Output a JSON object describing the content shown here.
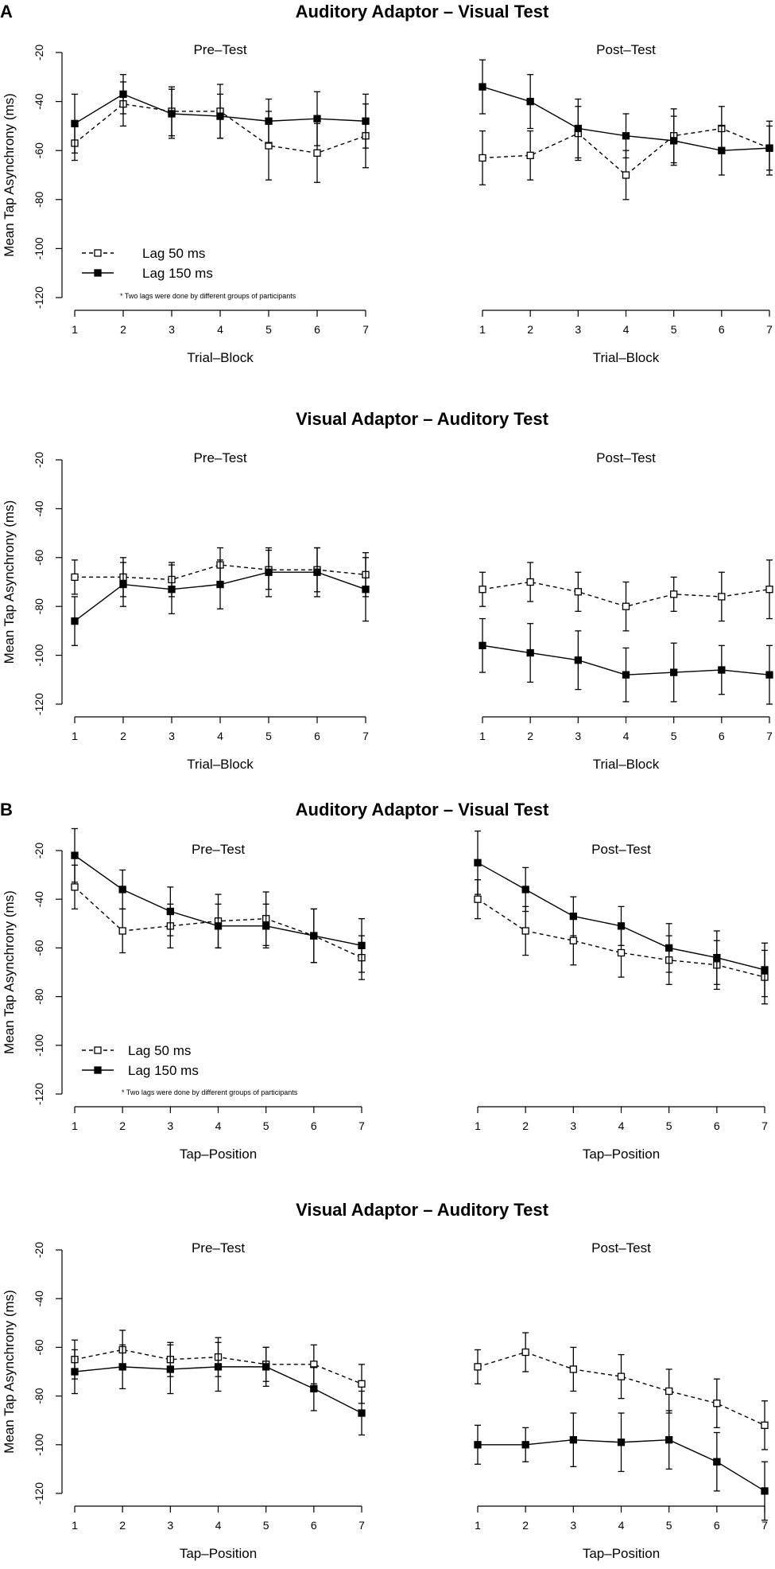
{
  "sections": [
    {
      "letter": "A",
      "title": "Auditory Adaptor – Visual Test"
    },
    {
      "letter": "",
      "title": "Visual Adaptor – Auditory Test"
    },
    {
      "letter": "B",
      "title": "Auditory Adaptor – Visual Test"
    },
    {
      "letter": "",
      "title": "Visual Adaptor – Auditory Test"
    }
  ],
  "legend": {
    "lag50": "Lag 50 ms",
    "lag150": "Lag 150 ms"
  },
  "note": "* Two lags were done by different groups of participants",
  "colors": {
    "ink": "#000000",
    "open_fill": "#ffffff"
  },
  "chart_data": [
    {
      "type": "line",
      "title": "Pre–Test",
      "xlabel": "Trial–Block",
      "ylabel": "Mean Tap Asynchrony  (ms)",
      "x": [
        1,
        2,
        3,
        4,
        5,
        6,
        7
      ],
      "ylim": [
        -120,
        -20
      ],
      "yticks": [
        -20,
        -40,
        -60,
        -80,
        -100,
        -120
      ],
      "series": [
        {
          "name": "Lag 50 ms",
          "style": "dashed-open",
          "values": [
            -57,
            -41,
            -44,
            -44,
            -58,
            -61,
            -54
          ],
          "err": [
            7,
            9,
            10,
            11,
            14,
            12,
            13
          ]
        },
        {
          "name": "Lag 150 ms",
          "style": "solid-filled",
          "values": [
            -49,
            -37,
            -45,
            -46,
            -48,
            -47,
            -48
          ],
          "err": [
            12,
            8,
            10,
            9,
            9,
            11,
            11
          ]
        }
      ]
    },
    {
      "type": "line",
      "title": "Post–Test",
      "xlabel": "Trial–Block",
      "ylabel": "",
      "x": [
        1,
        2,
        3,
        4,
        5,
        6,
        7
      ],
      "ylim": [
        -120,
        -20
      ],
      "yticks": [],
      "series": [
        {
          "name": "Lag 50 ms",
          "style": "dashed-open",
          "values": [
            -63,
            -62,
            -53,
            -70,
            -54,
            -51,
            -59
          ],
          "err": [
            11,
            10,
            11,
            10,
            11,
            9,
            11
          ]
        },
        {
          "name": "Lag 150 ms",
          "style": "solid-filled",
          "values": [
            -34,
            -40,
            -51,
            -54,
            -56,
            -60,
            -59
          ],
          "err": [
            11,
            11,
            12,
            9,
            10,
            10,
            9
          ]
        }
      ]
    },
    {
      "type": "line",
      "title": "Pre–Test",
      "xlabel": "Trial–Block",
      "ylabel": "Mean Tap Asynchrony  (ms)",
      "x": [
        1,
        2,
        3,
        4,
        5,
        6,
        7
      ],
      "ylim": [
        -120,
        -20
      ],
      "yticks": [
        -20,
        -40,
        -60,
        -80,
        -100,
        -120
      ],
      "series": [
        {
          "name": "Lag 50 ms",
          "style": "dashed-open",
          "values": [
            -68,
            -68,
            -69,
            -63,
            -65,
            -65,
            -67
          ],
          "err": [
            7,
            8,
            7,
            7,
            8,
            9,
            9
          ]
        },
        {
          "name": "Lag 150 ms",
          "style": "solid-filled",
          "values": [
            -86,
            -71,
            -73,
            -71,
            -66,
            -66,
            -73
          ],
          "err": [
            10,
            9,
            10,
            10,
            10,
            10,
            13
          ]
        }
      ]
    },
    {
      "type": "line",
      "title": "Post–Test",
      "xlabel": "Trial–Block",
      "ylabel": "",
      "x": [
        1,
        2,
        3,
        4,
        5,
        6,
        7
      ],
      "ylim": [
        -120,
        -20
      ],
      "yticks": [],
      "series": [
        {
          "name": "Lag 50 ms",
          "style": "dashed-open",
          "values": [
            -73,
            -70,
            -74,
            -80,
            -75,
            -76,
            -73
          ],
          "err": [
            7,
            8,
            8,
            10,
            7,
            10,
            12
          ]
        },
        {
          "name": "Lag 150 ms",
          "style": "solid-filled",
          "values": [
            -96,
            -99,
            -102,
            -108,
            -107,
            -106,
            -108
          ],
          "err": [
            11,
            12,
            12,
            11,
            12,
            10,
            12
          ]
        }
      ]
    },
    {
      "type": "line",
      "title": "Pre–Test",
      "xlabel": "Tap–Position",
      "ylabel": "Mean Tap Asynchrony  (ms)",
      "x": [
        1,
        2,
        3,
        4,
        5,
        6,
        7
      ],
      "ylim": [
        -120,
        -20
      ],
      "yticks": [
        -20,
        -40,
        -60,
        -80,
        -100,
        -120
      ],
      "series": [
        {
          "name": "Lag 50 ms",
          "style": "dashed-open",
          "values": [
            -35,
            -53,
            -51,
            -49,
            -48,
            -55,
            -64
          ],
          "err": [
            9,
            9,
            9,
            11,
            11,
            11,
            9
          ]
        },
        {
          "name": "Lag 150 ms",
          "style": "solid-filled",
          "values": [
            -22,
            -36,
            -45,
            -51,
            -51,
            -55,
            -59
          ],
          "err": [
            11,
            8,
            10,
            9,
            9,
            11,
            11
          ]
        }
      ]
    },
    {
      "type": "line",
      "title": "Post–Test",
      "xlabel": "Tap–Position",
      "ylabel": "",
      "x": [
        1,
        2,
        3,
        4,
        5,
        6,
        7
      ],
      "ylim": [
        -120,
        -20
      ],
      "yticks": [],
      "series": [
        {
          "name": "Lag 50 ms",
          "style": "dashed-open",
          "values": [
            -40,
            -53,
            -57,
            -62,
            -65,
            -67,
            -72
          ],
          "err": [
            8,
            10,
            10,
            10,
            10,
            10,
            11
          ]
        },
        {
          "name": "Lag 150 ms",
          "style": "solid-filled",
          "values": [
            -25,
            -36,
            -47,
            -51,
            -60,
            -64,
            -69
          ],
          "err": [
            13,
            9,
            8,
            8,
            10,
            11,
            11
          ]
        }
      ]
    },
    {
      "type": "line",
      "title": "Pre–Test",
      "xlabel": "Tap–Position",
      "ylabel": "Mean Tap Asynchrony  (ms)",
      "x": [
        1,
        2,
        3,
        4,
        5,
        6,
        7
      ],
      "ylim": [
        -120,
        -20
      ],
      "yticks": [
        -20,
        -40,
        -60,
        -80,
        -100,
        -120
      ],
      "series": [
        {
          "name": "Lag 50 ms",
          "style": "dashed-open",
          "values": [
            -65,
            -61,
            -65,
            -64,
            -67,
            -67,
            -75
          ],
          "err": [
            8,
            8,
            7,
            8,
            7,
            8,
            8
          ]
        },
        {
          "name": "Lag 150 ms",
          "style": "solid-filled",
          "values": [
            -70,
            -68,
            -69,
            -68,
            -68,
            -77,
            -87
          ],
          "err": [
            9,
            9,
            10,
            10,
            8,
            9,
            9
          ]
        }
      ]
    },
    {
      "type": "line",
      "title": "Post–Test",
      "xlabel": "Tap–Position",
      "ylabel": "",
      "x": [
        1,
        2,
        3,
        4,
        5,
        6,
        7
      ],
      "ylim": [
        -120,
        -20
      ],
      "yticks": [],
      "series": [
        {
          "name": "Lag 50 ms",
          "style": "dashed-open",
          "values": [
            -68,
            -62,
            -69,
            -72,
            -78,
            -83,
            -92
          ],
          "err": [
            7,
            8,
            9,
            9,
            9,
            10,
            10
          ]
        },
        {
          "name": "Lag 150 ms",
          "style": "solid-filled",
          "values": [
            -100,
            -100,
            -98,
            -99,
            -98,
            -107,
            -119
          ],
          "err": [
            8,
            7,
            11,
            12,
            12,
            12,
            12
          ]
        }
      ]
    }
  ]
}
